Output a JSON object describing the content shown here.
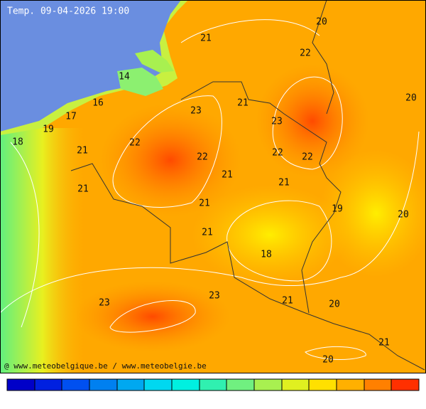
{
  "title": "Temp. 09-04-2026 19:00",
  "credit": "@ www.meteobelgique.be / www.meteobelgie.be",
  "labels": [
    20,
    21,
    22,
    14,
    20,
    16,
    21,
    23,
    17,
    23,
    19,
    18,
    22,
    21,
    22,
    22,
    22,
    21,
    21,
    21,
    21,
    19,
    20,
    21,
    18,
    23,
    23,
    21,
    20,
    21,
    20
  ]
}
